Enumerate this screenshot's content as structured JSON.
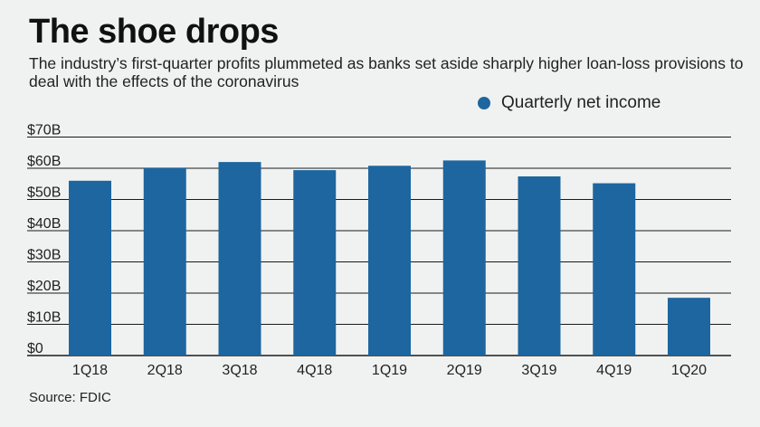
{
  "header": {
    "title": "The shoe drops",
    "subtitle": "The industry’s first-quarter profits plummeted as banks set aside sharply higher loan-loss provisions to deal with the effects of the coronavirus"
  },
  "footer": {
    "source": "Source: FDIC"
  },
  "colors": {
    "bar": "#1d66a0",
    "grid": "#1a1a1a",
    "background": "#f0f2f1"
  },
  "chart_data": {
    "type": "bar",
    "title": "The shoe drops",
    "subtitle": "The industry’s first-quarter profits plummeted as banks set aside sharply higher loan-loss provisions to deal with the effects of the coronavirus",
    "xlabel": "",
    "ylabel": "",
    "categories": [
      "1Q18",
      "2Q18",
      "3Q18",
      "4Q18",
      "1Q19",
      "2Q19",
      "3Q19",
      "4Q19",
      "1Q20"
    ],
    "series": [
      {
        "name": "Quarterly net income",
        "values": [
          56.0,
          60.2,
          62.0,
          59.4,
          60.8,
          62.5,
          57.4,
          55.2,
          18.5
        ]
      }
    ],
    "ylim": [
      0,
      70
    ],
    "yticks": [
      0,
      10,
      20,
      30,
      40,
      50,
      60,
      70
    ],
    "ytick_labels": [
      "$0",
      "$10B",
      "$20B",
      "$30B",
      "$40B",
      "$50B",
      "$60B",
      "$70B"
    ],
    "grid": true,
    "legend_position": "top-right",
    "unit": "$B"
  }
}
